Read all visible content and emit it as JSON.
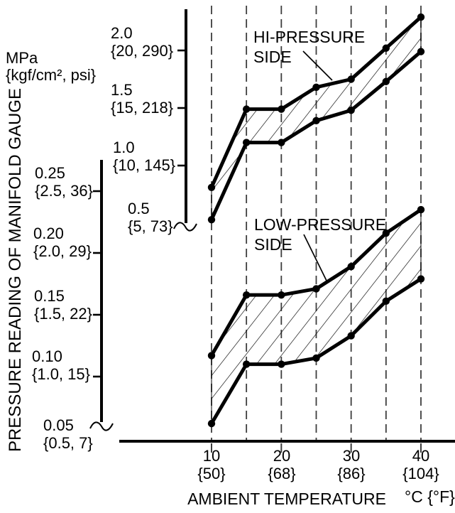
{
  "figure": {
    "background": "#ffffff",
    "ink_color": "#000000",
    "gridline_color": "#3d3d3d"
  },
  "y_axis": {
    "title": "PRESSURE READING OF MANIFOLD GAUGE",
    "unit_line1": "MPa",
    "unit_line2": "{kgf/cm², psi}",
    "hi_scale_ticks": [
      {
        "value": 2.0,
        "label": "2.0",
        "sub_label": "{20, 290}"
      },
      {
        "value": 1.5,
        "label": "1.5",
        "sub_label": "{15, 218}"
      },
      {
        "value": 1.0,
        "label": "1.0",
        "sub_label": "{10, 145}"
      },
      {
        "value": 0.5,
        "label": "0.5",
        "sub_label": "{5, 73}",
        "break_squiggle": true
      }
    ],
    "low_scale_ticks": [
      {
        "value": 0.25,
        "label": "0.25",
        "sub_label": "{2.5, 36}"
      },
      {
        "value": 0.2,
        "label": "0.20",
        "sub_label": "{2.0, 29}"
      },
      {
        "value": 0.15,
        "label": "0.15",
        "sub_label": "{1.5, 22}"
      },
      {
        "value": 0.1,
        "label": "0.10",
        "sub_label": "{1.0, 15}"
      },
      {
        "value": 0.05,
        "label": "0.05",
        "sub_label": "{0.5, 7}",
        "break_squiggle": true
      }
    ]
  },
  "x_axis": {
    "title": "AMBIENT TEMPERATURE",
    "unit_label": "°C {°F}",
    "ticks": [
      {
        "value": 10,
        "label": "10",
        "sub_label": "{50}"
      },
      {
        "value": 20,
        "label": "20",
        "sub_label": "{68}"
      },
      {
        "value": 30,
        "label": "30",
        "sub_label": "{86}"
      },
      {
        "value": 40,
        "label": "40",
        "sub_label": "{104}"
      }
    ],
    "gridline_values": [
      10,
      15,
      20,
      25,
      30,
      35,
      40
    ]
  },
  "annotations": {
    "hi_label": {
      "line1": "HI-PRESSURE",
      "line2": "SIDE"
    },
    "low_label": {
      "line1": "LOW-PRESSURE",
      "line2": "SIDE"
    }
  },
  "chart_data": {
    "type": "area",
    "title": "",
    "xlabel": "AMBIENT TEMPERATURE (°C {°F})",
    "ylabel": "PRESSURE READING OF MANIFOLD GAUGE (MPa {kgf/cm², psi})",
    "x_values_c": [
      10,
      15,
      20,
      25,
      30,
      35,
      40
    ],
    "x_labeled_ticks_c": [
      10,
      20,
      30,
      40
    ],
    "x_labeled_ticks_f": [
      50,
      68,
      86,
      104
    ],
    "grid": "vertical-dashed",
    "legend_position": "inline-labels",
    "hi_scale_range_mpa": [
      0.5,
      2.0
    ],
    "low_scale_range_mpa": [
      0.05,
      0.25
    ],
    "bands": [
      {
        "name": "HI-PRESSURE SIDE",
        "scale": "hi",
        "upper_mpa": [
          0.81,
          1.49,
          1.49,
          1.68,
          1.75,
          2.02,
          2.29
        ],
        "lower_mpa": [
          0.53,
          1.2,
          1.2,
          1.39,
          1.48,
          1.73,
          1.99
        ]
      },
      {
        "name": "LOW-PRESSURE SIDE",
        "scale": "low",
        "upper_mpa": [
          0.117,
          0.166,
          0.166,
          0.171,
          0.189,
          0.216,
          0.235
        ],
        "lower_mpa": [
          0.062,
          0.11,
          0.11,
          0.115,
          0.133,
          0.161,
          0.179
        ]
      }
    ]
  }
}
